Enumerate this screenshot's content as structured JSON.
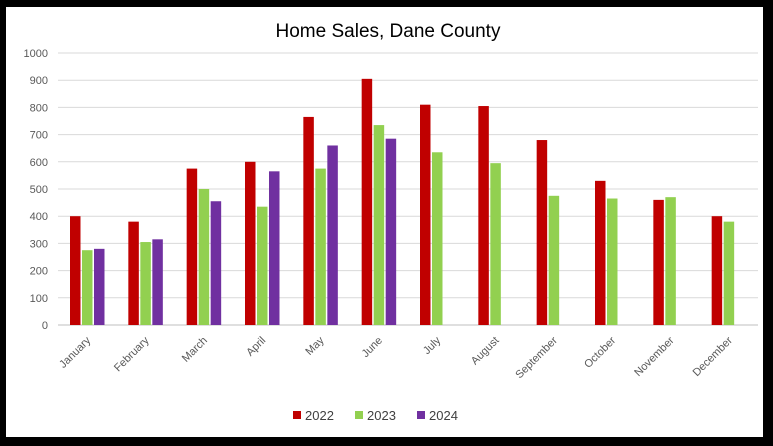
{
  "chart_data": {
    "type": "bar",
    "title": "Home Sales, Dane County",
    "xlabel": "",
    "ylabel": "",
    "ylim": [
      0,
      1000
    ],
    "yticks": [
      0,
      100,
      200,
      300,
      400,
      500,
      600,
      700,
      800,
      900,
      1000
    ],
    "grid": true,
    "legend_position": "bottom",
    "categories": [
      "January",
      "February",
      "March",
      "April",
      "May",
      "June",
      "July",
      "August",
      "September",
      "October",
      "November",
      "December"
    ],
    "series": [
      {
        "name": "2022",
        "color": "#C00000",
        "values": [
          400,
          380,
          575,
          600,
          765,
          905,
          810,
          805,
          680,
          530,
          460,
          400
        ]
      },
      {
        "name": "2023",
        "color": "#92D050",
        "values": [
          275,
          305,
          500,
          435,
          575,
          735,
          635,
          595,
          475,
          465,
          470,
          380
        ]
      },
      {
        "name": "2024",
        "color": "#7030A0",
        "values": [
          280,
          315,
          455,
          565,
          660,
          685,
          null,
          null,
          null,
          null,
          null,
          null
        ]
      }
    ]
  }
}
